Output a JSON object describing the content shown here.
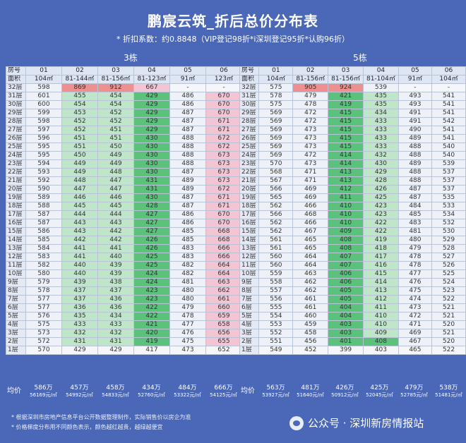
{
  "title": "鹏宸云筑_折后总价分布表",
  "subtitle": "* 折扣系数：约0.8848（VIP登记98折*i深圳登记95折*认购96折）",
  "watermark": "公众号 · 深圳新房情报站",
  "notes": [
    "* 根据深圳市房地产信息平台公开数据整理制作，实际销售价以房企为准",
    "* 价格梯度分布用不同颜色表示，颜色越红越贵，越绿越便宜"
  ],
  "buildings": [
    {
      "name": "3栋",
      "label_room": "房号",
      "label_area": "面积",
      "label_avg": "均价",
      "units": [
        "01",
        "02",
        "03",
        "04",
        "05",
        "06"
      ],
      "areas": [
        "104㎡",
        "81-144㎡",
        "81-156㎡",
        "81-123㎡",
        "91㎡",
        "123㎡"
      ],
      "floors": [
        "32层",
        "31层",
        "30层",
        "29层",
        "28层",
        "27层",
        "26层",
        "25层",
        "24层",
        "23层",
        "22层",
        "21层",
        "20层",
        "19层",
        "18层",
        "17层",
        "16层",
        "15层",
        "14层",
        "13层",
        "12层",
        "11层",
        "10层",
        "9层",
        "8层",
        "7层",
        "6层",
        "5层",
        "4层",
        "3层",
        "2层",
        "1层"
      ],
      "prices": [
        [
          "598",
          "869",
          "912",
          "667",
          "-",
          "-"
        ],
        [
          "601",
          "455",
          "454",
          "429",
          "486",
          "670"
        ],
        [
          "600",
          "454",
          "454",
          "429",
          "486",
          "670"
        ],
        [
          "599",
          "453",
          "452",
          "429",
          "487",
          "670"
        ],
        [
          "598",
          "452",
          "452",
          "429",
          "487",
          "671"
        ],
        [
          "597",
          "452",
          "451",
          "429",
          "487",
          "671"
        ],
        [
          "596",
          "451",
          "451",
          "430",
          "488",
          "672"
        ],
        [
          "595",
          "451",
          "450",
          "430",
          "488",
          "672"
        ],
        [
          "595",
          "450",
          "449",
          "430",
          "488",
          "673"
        ],
        [
          "594",
          "449",
          "449",
          "430",
          "488",
          "673"
        ],
        [
          "593",
          "449",
          "448",
          "430",
          "487",
          "673"
        ],
        [
          "592",
          "448",
          "447",
          "431",
          "489",
          "673"
        ],
        [
          "590",
          "447",
          "447",
          "431",
          "489",
          "672"
        ],
        [
          "589",
          "446",
          "446",
          "430",
          "487",
          "671"
        ],
        [
          "588",
          "445",
          "445",
          "428",
          "487",
          "671"
        ],
        [
          "587",
          "444",
          "444",
          "427",
          "486",
          "670"
        ],
        [
          "587",
          "443",
          "443",
          "427",
          "486",
          "670"
        ],
        [
          "586",
          "443",
          "442",
          "427",
          "485",
          "668"
        ],
        [
          "585",
          "442",
          "442",
          "426",
          "485",
          "668"
        ],
        [
          "584",
          "441",
          "441",
          "426",
          "483",
          "666"
        ],
        [
          "583",
          "441",
          "440",
          "425",
          "483",
          "666"
        ],
        [
          "582",
          "440",
          "439",
          "425",
          "482",
          "664"
        ],
        [
          "580",
          "440",
          "439",
          "424",
          "482",
          "664"
        ],
        [
          "579",
          "439",
          "438",
          "424",
          "481",
          "663"
        ],
        [
          "578",
          "437",
          "437",
          "423",
          "480",
          "662"
        ],
        [
          "577",
          "437",
          "436",
          "423",
          "480",
          "661"
        ],
        [
          "577",
          "436",
          "436",
          "422",
          "479",
          "660"
        ],
        [
          "576",
          "435",
          "434",
          "422",
          "478",
          "659"
        ],
        [
          "575",
          "433",
          "433",
          "421",
          "477",
          "658"
        ],
        [
          "573",
          "432",
          "432",
          "420",
          "476",
          "656"
        ],
        [
          "572",
          "431",
          "431",
          "419",
          "475",
          "655"
        ],
        [
          "570",
          "429",
          "429",
          "417",
          "473",
          "652"
        ]
      ],
      "colors": [
        [
          "w",
          "r",
          "r",
          "p",
          "e",
          "e"
        ],
        [
          "w",
          "g",
          "g",
          "dg",
          "w",
          "p"
        ],
        [
          "w",
          "g",
          "g",
          "dg",
          "w",
          "p"
        ],
        [
          "w",
          "g",
          "g",
          "dg",
          "w",
          "p"
        ],
        [
          "w",
          "g",
          "g",
          "dg",
          "w",
          "p"
        ],
        [
          "w",
          "g",
          "g",
          "dg",
          "w",
          "p"
        ],
        [
          "w",
          "g",
          "g",
          "dg",
          "w",
          "p"
        ],
        [
          "w",
          "g",
          "g",
          "dg",
          "w",
          "p"
        ],
        [
          "w",
          "g",
          "g",
          "dg",
          "w",
          "p"
        ],
        [
          "w",
          "g",
          "g",
          "dg",
          "w",
          "p"
        ],
        [
          "w",
          "g",
          "g",
          "dg",
          "w",
          "p"
        ],
        [
          "w",
          "g",
          "g",
          "dg",
          "w",
          "p"
        ],
        [
          "w",
          "g",
          "g",
          "dg",
          "w",
          "p"
        ],
        [
          "w",
          "g",
          "g",
          "dg",
          "w",
          "p"
        ],
        [
          "w",
          "g",
          "g",
          "dg",
          "w",
          "p"
        ],
        [
          "w",
          "g",
          "g",
          "dg",
          "w",
          "p"
        ],
        [
          "w",
          "g",
          "g",
          "dg",
          "w",
          "p"
        ],
        [
          "w",
          "g",
          "g",
          "dg",
          "w",
          "p"
        ],
        [
          "w",
          "g",
          "g",
          "dg",
          "w",
          "p"
        ],
        [
          "w",
          "g",
          "g",
          "dg",
          "w",
          "p"
        ],
        [
          "w",
          "g",
          "g",
          "dg",
          "w",
          "p"
        ],
        [
          "w",
          "g",
          "g",
          "dg",
          "w",
          "p"
        ],
        [
          "w",
          "g",
          "g",
          "dg",
          "w",
          "p"
        ],
        [
          "w",
          "g",
          "g",
          "dg",
          "w",
          "p"
        ],
        [
          "w",
          "g",
          "g",
          "dg",
          "w",
          "p"
        ],
        [
          "w",
          "g",
          "g",
          "dg",
          "w",
          "p"
        ],
        [
          "w",
          "g",
          "g",
          "dg",
          "w",
          "p"
        ],
        [
          "w",
          "g",
          "g",
          "dg",
          "w",
          "p"
        ],
        [
          "w",
          "g",
          "g",
          "dg",
          "w",
          "p"
        ],
        [
          "w",
          "g",
          "g",
          "dg",
          "w",
          "p"
        ],
        [
          "w",
          "g",
          "g",
          "dg",
          "w",
          "p"
        ],
        [
          "e",
          "e",
          "e",
          "e",
          "e",
          "e"
        ]
      ],
      "avg_total": [
        "586万",
        "457万",
        "458万",
        "434万",
        "484万",
        "666万"
      ],
      "avg_unit": [
        "56169元/㎡",
        "54992元/㎡",
        "54833元/㎡",
        "52760元/㎡",
        "53322元/㎡",
        "54125元/㎡"
      ]
    },
    {
      "name": "5栋",
      "label_room": "房号",
      "label_area": "面积",
      "label_avg": "均价",
      "units": [
        "01",
        "02",
        "03",
        "04",
        "05",
        "06"
      ],
      "areas": [
        "104㎡",
        "81-156㎡",
        "81-156㎡",
        "81-104㎡",
        "91㎡",
        "104㎡"
      ],
      "floors": [
        "32层",
        "31层",
        "30层",
        "29层",
        "28层",
        "27层",
        "26层",
        "25层",
        "24层",
        "23层",
        "22层",
        "21层",
        "20层",
        "19层",
        "18层",
        "17层",
        "16层",
        "15层",
        "14层",
        "13层",
        "12层",
        "11层",
        "10层",
        "9层",
        "8层",
        "7层",
        "6层",
        "5层",
        "4层",
        "3层",
        "2层",
        "1层"
      ],
      "prices": [
        [
          "575",
          "905",
          "924",
          "539",
          "-",
          "-"
        ],
        [
          "578",
          "479",
          "421",
          "435",
          "493",
          "541"
        ],
        [
          "575",
          "478",
          "419",
          "435",
          "493",
          "541"
        ],
        [
          "569",
          "472",
          "415",
          "434",
          "491",
          "541"
        ],
        [
          "569",
          "472",
          "415",
          "433",
          "491",
          "542"
        ],
        [
          "569",
          "473",
          "415",
          "433",
          "490",
          "541"
        ],
        [
          "569",
          "473",
          "415",
          "433",
          "489",
          "541"
        ],
        [
          "569",
          "473",
          "415",
          "433",
          "488",
          "540"
        ],
        [
          "569",
          "472",
          "414",
          "432",
          "488",
          "540"
        ],
        [
          "570",
          "473",
          "414",
          "430",
          "489",
          "539"
        ],
        [
          "568",
          "471",
          "413",
          "429",
          "488",
          "537"
        ],
        [
          "567",
          "471",
          "413",
          "428",
          "488",
          "537"
        ],
        [
          "566",
          "469",
          "412",
          "426",
          "487",
          "537"
        ],
        [
          "565",
          "469",
          "411",
          "425",
          "487",
          "535"
        ],
        [
          "562",
          "466",
          "410",
          "423",
          "484",
          "533"
        ],
        [
          "566",
          "468",
          "410",
          "423",
          "485",
          "534"
        ],
        [
          "562",
          "466",
          "410",
          "422",
          "483",
          "532"
        ],
        [
          "562",
          "467",
          "409",
          "422",
          "481",
          "530"
        ],
        [
          "561",
          "465",
          "408",
          "419",
          "480",
          "529"
        ],
        [
          "561",
          "465",
          "408",
          "418",
          "479",
          "528"
        ],
        [
          "560",
          "464",
          "407",
          "417",
          "478",
          "527"
        ],
        [
          "560",
          "464",
          "407",
          "416",
          "478",
          "526"
        ],
        [
          "559",
          "463",
          "406",
          "415",
          "477",
          "525"
        ],
        [
          "558",
          "462",
          "406",
          "414",
          "476",
          "524"
        ],
        [
          "557",
          "462",
          "405",
          "413",
          "475",
          "523"
        ],
        [
          "556",
          "461",
          "405",
          "412",
          "474",
          "522"
        ],
        [
          "555",
          "461",
          "404",
          "411",
          "473",
          "521"
        ],
        [
          "554",
          "460",
          "404",
          "410",
          "472",
          "521"
        ],
        [
          "553",
          "459",
          "403",
          "410",
          "471",
          "520"
        ],
        [
          "552",
          "458",
          "403",
          "409",
          "469",
          "521"
        ],
        [
          "551",
          "456",
          "401",
          "408",
          "467",
          "520"
        ],
        [
          "549",
          "452",
          "399",
          "403",
          "465",
          "522"
        ]
      ],
      "colors": [
        [
          "w",
          "r",
          "r",
          "w",
          "e",
          "e"
        ],
        [
          "w",
          "w",
          "dg",
          "g",
          "w",
          "w"
        ],
        [
          "w",
          "w",
          "dg",
          "g",
          "w",
          "w"
        ],
        [
          "w",
          "w",
          "dg",
          "g",
          "w",
          "w"
        ],
        [
          "w",
          "w",
          "dg",
          "g",
          "w",
          "w"
        ],
        [
          "w",
          "w",
          "dg",
          "g",
          "w",
          "w"
        ],
        [
          "w",
          "w",
          "dg",
          "g",
          "w",
          "w"
        ],
        [
          "w",
          "w",
          "dg",
          "g",
          "w",
          "w"
        ],
        [
          "w",
          "w",
          "dg",
          "g",
          "w",
          "w"
        ],
        [
          "w",
          "w",
          "dg",
          "g",
          "w",
          "w"
        ],
        [
          "w",
          "w",
          "dg",
          "g",
          "w",
          "w"
        ],
        [
          "w",
          "w",
          "dg",
          "g",
          "w",
          "w"
        ],
        [
          "w",
          "w",
          "dg",
          "g",
          "w",
          "w"
        ],
        [
          "w",
          "w",
          "dg",
          "g",
          "w",
          "w"
        ],
        [
          "w",
          "w",
          "dg",
          "g",
          "w",
          "w"
        ],
        [
          "w",
          "w",
          "dg",
          "g",
          "w",
          "w"
        ],
        [
          "w",
          "w",
          "dg",
          "g",
          "w",
          "w"
        ],
        [
          "w",
          "w",
          "dg",
          "g",
          "w",
          "w"
        ],
        [
          "w",
          "w",
          "dg",
          "g",
          "w",
          "w"
        ],
        [
          "w",
          "w",
          "dg",
          "g",
          "w",
          "w"
        ],
        [
          "w",
          "w",
          "dg",
          "g",
          "w",
          "w"
        ],
        [
          "w",
          "w",
          "dg",
          "g",
          "w",
          "w"
        ],
        [
          "w",
          "w",
          "dg",
          "g",
          "w",
          "w"
        ],
        [
          "w",
          "w",
          "dg",
          "g",
          "w",
          "w"
        ],
        [
          "w",
          "w",
          "dg",
          "g",
          "w",
          "w"
        ],
        [
          "w",
          "w",
          "dg",
          "g",
          "w",
          "w"
        ],
        [
          "w",
          "w",
          "dg",
          "g",
          "w",
          "w"
        ],
        [
          "w",
          "w",
          "dg",
          "g",
          "w",
          "w"
        ],
        [
          "w",
          "w",
          "dg",
          "g",
          "w",
          "w"
        ],
        [
          "w",
          "w",
          "dg",
          "g",
          "w",
          "w"
        ],
        [
          "w",
          "w",
          "dg",
          "dg",
          "w",
          "w"
        ],
        [
          "e",
          "e",
          "e",
          "e",
          "e",
          "e"
        ]
      ],
      "avg_total": [
        "563万",
        "481万",
        "426万",
        "425万",
        "479万",
        "538万"
      ],
      "avg_unit": [
        "53927元/㎡",
        "51640元/㎡",
        "50912元/㎡",
        "52045元/㎡",
        "52785元/㎡",
        "51481元/㎡"
      ]
    }
  ]
}
